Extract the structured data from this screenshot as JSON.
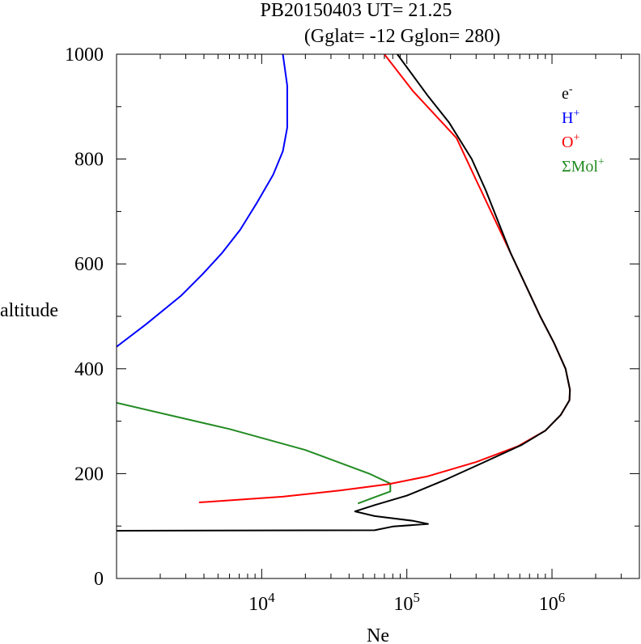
{
  "chart_data": {
    "type": "line",
    "title_line1": "PB20150403   UT=  21.25",
    "title_line2": "(Gglat= -12   Gglon=  280)",
    "xlabel": "Ne",
    "ylabel": "altitude",
    "xscale": "log",
    "xlim": [
      1000,
      4000000
    ],
    "ylim": [
      0,
      1000
    ],
    "xticks_labeled": [
      {
        "base": "10",
        "exp": "4",
        "value": 10000
      },
      {
        "base": "10",
        "exp": "5",
        "value": 100000
      },
      {
        "base": "10",
        "exp": "6",
        "value": 1000000
      }
    ],
    "yticks": [
      0,
      200,
      400,
      600,
      800,
      1000
    ],
    "grid": false,
    "legend_position": "top-right",
    "series": [
      {
        "name": "e",
        "sup": "-",
        "color": "#000000",
        "points": [
          [
            1000,
            91
          ],
          [
            60000,
            92
          ],
          [
            80000,
            99
          ],
          [
            140000,
            104
          ],
          [
            110000,
            110
          ],
          [
            60000,
            119
          ],
          [
            44000,
            128
          ],
          [
            60000,
            140
          ],
          [
            100000,
            158
          ],
          [
            120000,
            167
          ],
          [
            190000,
            190
          ],
          [
            330000,
            220
          ],
          [
            620000,
            255
          ],
          [
            900000,
            282
          ],
          [
            1150000,
            312
          ],
          [
            1320000,
            340
          ],
          [
            1330000,
            360
          ],
          [
            1240000,
            400
          ],
          [
            1030000,
            450
          ],
          [
            830000,
            500
          ],
          [
            520000,
            620
          ],
          [
            350000,
            740
          ],
          [
            280000,
            800
          ],
          [
            195000,
            870
          ],
          [
            140000,
            920
          ],
          [
            86000,
            1000
          ]
        ]
      },
      {
        "name": "H",
        "sup": "+",
        "color": "#0000ff",
        "points": [
          [
            1000,
            442
          ],
          [
            1600,
            485
          ],
          [
            2800,
            540
          ],
          [
            3900,
            580
          ],
          [
            5300,
            620
          ],
          [
            7100,
            665
          ],
          [
            9200,
            715
          ],
          [
            12000,
            770
          ],
          [
            14000,
            815
          ],
          [
            15000,
            860
          ],
          [
            15000,
            940
          ],
          [
            14000,
            1000
          ]
        ]
      },
      {
        "name": "O",
        "sup": "+",
        "color": "#ff0000",
        "points": [
          [
            3700,
            145
          ],
          [
            14000,
            156
          ],
          [
            35000,
            168
          ],
          [
            75000,
            180
          ],
          [
            140000,
            195
          ],
          [
            300000,
            222
          ],
          [
            580000,
            252
          ],
          [
            900000,
            282
          ],
          [
            1150000,
            312
          ],
          [
            1320000,
            340
          ],
          [
            1330000,
            360
          ],
          [
            1240000,
            400
          ],
          [
            1030000,
            450
          ],
          [
            830000,
            500
          ],
          [
            520000,
            620
          ],
          [
            300000,
            760
          ],
          [
            220000,
            840
          ],
          [
            110000,
            930
          ],
          [
            70000,
            1000
          ]
        ]
      },
      {
        "name": "ΣMol",
        "sup": "+",
        "color": "#228b22",
        "points": [
          [
            1000,
            335
          ],
          [
            6000,
            285
          ],
          [
            20000,
            245
          ],
          [
            55000,
            200
          ],
          [
            77000,
            181
          ],
          [
            77000,
            166
          ],
          [
            60000,
            155
          ],
          [
            46000,
            143
          ]
        ]
      }
    ]
  }
}
